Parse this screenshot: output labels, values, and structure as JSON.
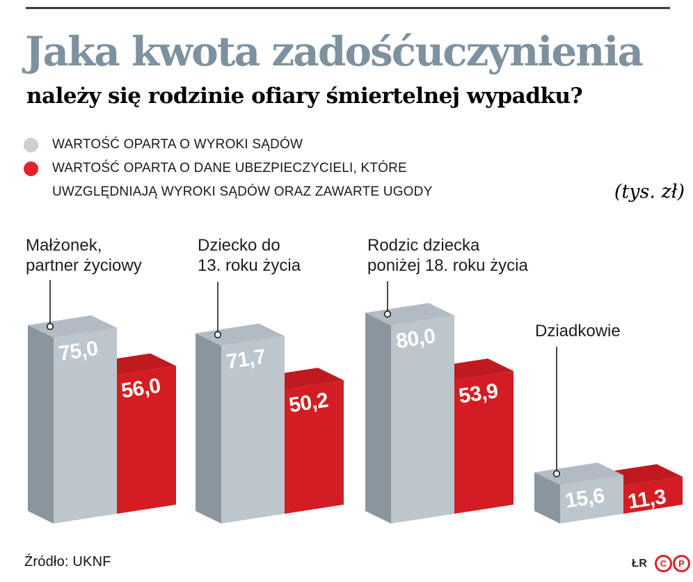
{
  "header": {
    "title": "Jaka kwota zadośćuczynienia",
    "subtitle": "należy się rodzinie ofiary śmiertelnej wypadku?"
  },
  "legend": {
    "unit_label": "(tys. zł)",
    "items": [
      {
        "label_lines": [
          "WARTOŚĆ OPARTA O WYROKI SĄDÓW"
        ],
        "color": "#c9d0d6"
      },
      {
        "label_lines": [
          "WARTOŚĆ OPARTA O DANE UBEZPIECZYCIELI, KTÓRE",
          "UWZGLĘDNIAJĄ WYROKI SĄDÓW ORAZ ZAWARTE UGODY"
        ],
        "color": "#e3232b"
      }
    ]
  },
  "chart_data": {
    "type": "bar",
    "style": "3d-oblique",
    "title": "Jaka kwota zadośćuczynienia należy się rodzinie ofiary śmiertelnej wypadku?",
    "unit": "tys. zł",
    "ylim": [
      0,
      80
    ],
    "grid": false,
    "legend_position": "top-left",
    "categories": [
      "Małżonek, partner życiowy",
      "Dziecko do 13. roku życia",
      "Rodzic dziecka poniżej 18. roku życia",
      "Dziadkowie"
    ],
    "categories_display": [
      {
        "line1": "Małżonek,",
        "line2": "partner życiowy"
      },
      {
        "line1": "Dziecko do",
        "line2": "13. roku życia"
      },
      {
        "line1": "Rodzic dziecka",
        "line2": "poniżej 18. roku życia"
      },
      {
        "line1": "Dziadkowie",
        "line2": ""
      }
    ],
    "series": [
      {
        "name": "WARTOŚĆ OPARTA O WYROKI SĄDÓW",
        "values": [
          75.0,
          71.7,
          80.0,
          15.6
        ],
        "labels": [
          "75,0",
          "71,7",
          "80,0",
          "15,6"
        ]
      },
      {
        "name": "WARTOŚĆ OPARTA O DANE UBEZPIECZYCIELI, KTÓRE UWZGLĘDNIAJĄ WYROKI SĄDÓW ORAZ ZAWARTE UGODY",
        "values": [
          56.0,
          50.2,
          53.9,
          11.3
        ],
        "labels": [
          "56,0",
          "50,2",
          "53,9",
          "11,3"
        ]
      }
    ]
  },
  "colors": {
    "title": "#7e919e",
    "accent_red": "#da2128",
    "bar_gray_front": "#bdc6cd",
    "bar_gray_top": "#b2bbc3",
    "bar_gray_side": "#8b959d",
    "bar_red_front": "#d41d22",
    "bar_red_top": "#bf1a1f",
    "value_text": "#ffffff"
  },
  "footer": {
    "source": "Źródło: UKNF",
    "credit": "ŁR",
    "badges": [
      {
        "letter": "C"
      },
      {
        "letter": "P"
      }
    ]
  }
}
